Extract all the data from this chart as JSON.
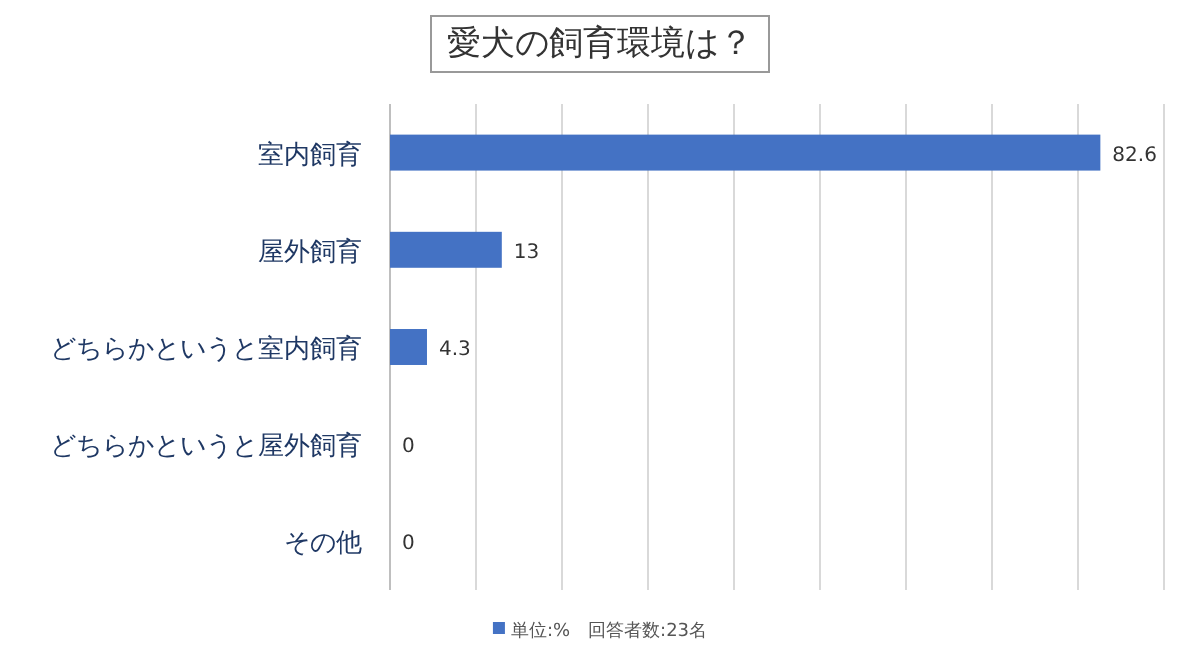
{
  "chart_data": {
    "type": "bar",
    "orientation": "horizontal",
    "title": "愛犬の飼育環境は？",
    "categories": [
      "室内飼育",
      "屋外飼育",
      "どちらかというと室内飼育",
      "どちらかというと屋外飼育",
      "その他"
    ],
    "series": [
      {
        "name": "単位:%　回答者数:23名",
        "color": "#4472c4",
        "values": [
          82.6,
          13,
          4.3,
          0,
          0
        ]
      }
    ],
    "xlim": [
      0,
      90
    ],
    "xticks": [
      {
        "value": 0,
        "label": null
      },
      {
        "value": 10,
        "label": null
      },
      {
        "value": 20,
        "label": null
      },
      {
        "value": 30,
        "label": null
      },
      {
        "value": 40,
        "label": null
      },
      {
        "value": 50,
        "label": null
      },
      {
        "value": 60,
        "label": null
      },
      {
        "value": 70,
        "label": null
      },
      {
        "value": 80,
        "label": null
      },
      {
        "value": 90,
        "label": null
      }
    ],
    "tick_labels": "y",
    "grid": "x",
    "data_labels": true,
    "legend": "bottom"
  }
}
